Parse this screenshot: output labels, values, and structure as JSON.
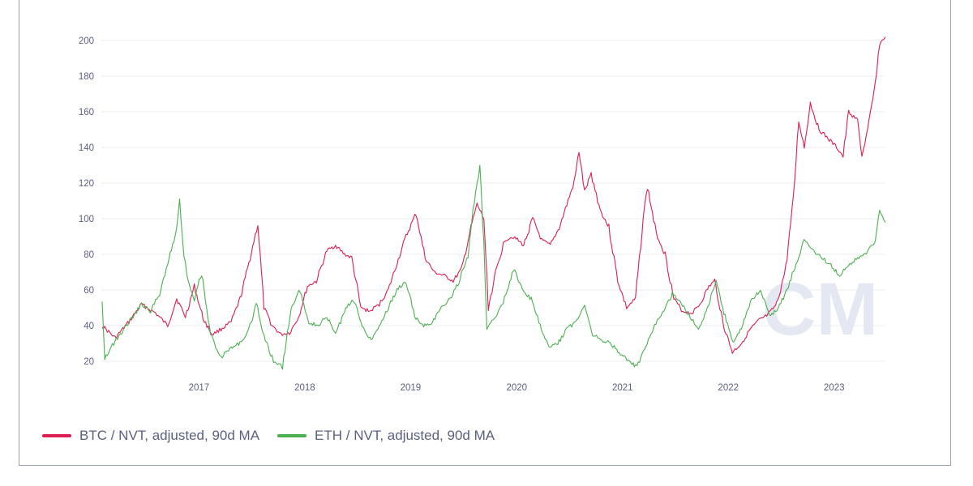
{
  "watermark": "CM",
  "chart_data": {
    "type": "line",
    "x_range": [
      "2016-08-01",
      "2023-12-25"
    ],
    "ylim": [
      15,
      210
    ],
    "y_ticks": [
      20,
      40,
      60,
      80,
      100,
      120,
      140,
      160,
      180,
      200
    ],
    "x_ticks": [
      "2017",
      "2018",
      "2019",
      "2020",
      "2021",
      "2022",
      "2023"
    ],
    "grid": "horizontal",
    "legend_position": "bottom-left",
    "series": [
      {
        "name": "BTC / NVT, adjusted, 90d MA",
        "color": "#dc1e50",
        "points": [
          [
            "2016-08-01",
            40
          ],
          [
            "2016-09-15",
            33
          ],
          [
            "2016-11-01",
            42
          ],
          [
            "2016-12-15",
            52
          ],
          [
            "2017-02-01",
            47
          ],
          [
            "2017-03-15",
            40
          ],
          [
            "2017-04-15",
            55
          ],
          [
            "2017-05-15",
            45
          ],
          [
            "2017-06-15",
            62
          ],
          [
            "2017-07-15",
            44
          ],
          [
            "2017-08-15",
            35
          ],
          [
            "2017-09-15",
            38
          ],
          [
            "2017-10-20",
            42
          ],
          [
            "2017-11-20",
            55
          ],
          [
            "2017-12-20",
            75
          ],
          [
            "2018-01-20",
            97
          ],
          [
            "2018-02-10",
            50
          ],
          [
            "2018-03-10",
            40
          ],
          [
            "2018-04-10",
            35
          ],
          [
            "2018-05-10",
            36
          ],
          [
            "2018-06-10",
            45
          ],
          [
            "2018-07-10",
            62
          ],
          [
            "2018-08-10",
            65
          ],
          [
            "2018-09-15",
            82
          ],
          [
            "2018-10-15",
            85
          ],
          [
            "2018-11-15",
            80
          ],
          [
            "2018-12-10",
            78
          ],
          [
            "2019-01-10",
            50
          ],
          [
            "2019-02-10",
            48
          ],
          [
            "2019-03-15",
            52
          ],
          [
            "2019-04-15",
            60
          ],
          [
            "2019-05-15",
            75
          ],
          [
            "2019-06-15",
            90
          ],
          [
            "2019-07-20",
            103
          ],
          [
            "2019-08-20",
            78
          ],
          [
            "2019-09-20",
            70
          ],
          [
            "2019-10-25",
            68
          ],
          [
            "2019-11-25",
            65
          ],
          [
            "2019-12-25",
            72
          ],
          [
            "2020-01-25",
            95
          ],
          [
            "2020-02-15",
            108
          ],
          [
            "2020-03-10",
            100
          ],
          [
            "2020-03-25",
            50
          ],
          [
            "2020-04-20",
            70
          ],
          [
            "2020-05-20",
            88
          ],
          [
            "2020-06-20",
            90
          ],
          [
            "2020-07-25",
            85
          ],
          [
            "2020-08-25",
            100
          ],
          [
            "2020-09-25",
            88
          ],
          [
            "2020-10-25",
            85
          ],
          [
            "2020-11-25",
            95
          ],
          [
            "2020-12-25",
            110
          ],
          [
            "2021-01-15",
            120
          ],
          [
            "2021-02-01",
            138
          ],
          [
            "2021-02-20",
            115
          ],
          [
            "2021-03-15",
            125
          ],
          [
            "2021-04-15",
            105
          ],
          [
            "2021-05-15",
            95
          ],
          [
            "2021-06-15",
            65
          ],
          [
            "2021-07-15",
            50
          ],
          [
            "2021-08-15",
            55
          ],
          [
            "2021-09-10",
            100
          ],
          [
            "2021-09-25",
            118
          ],
          [
            "2021-10-25",
            92
          ],
          [
            "2021-11-25",
            80
          ],
          [
            "2021-12-25",
            55
          ],
          [
            "2022-01-25",
            48
          ],
          [
            "2022-02-25",
            47
          ],
          [
            "2022-03-25",
            52
          ],
          [
            "2022-04-25",
            62
          ],
          [
            "2022-05-15",
            65
          ],
          [
            "2022-06-15",
            40
          ],
          [
            "2022-07-15",
            25
          ],
          [
            "2022-08-15",
            30
          ],
          [
            "2022-09-15",
            38
          ],
          [
            "2022-10-15",
            43
          ],
          [
            "2022-11-15",
            46
          ],
          [
            "2022-12-15",
            52
          ],
          [
            "2023-01-15",
            72
          ],
          [
            "2023-02-10",
            110
          ],
          [
            "2023-03-01",
            155
          ],
          [
            "2023-03-20",
            140
          ],
          [
            "2023-04-10",
            165
          ],
          [
            "2023-05-10",
            150
          ],
          [
            "2023-06-10",
            145
          ],
          [
            "2023-07-10",
            140
          ],
          [
            "2023-08-01",
            135
          ],
          [
            "2023-08-20",
            160
          ],
          [
            "2023-09-20",
            155
          ],
          [
            "2023-10-05",
            135
          ],
          [
            "2023-10-25",
            150
          ],
          [
            "2023-11-15",
            170
          ],
          [
            "2023-12-05",
            198
          ],
          [
            "2023-12-25",
            202
          ]
        ]
      },
      {
        "name": "ETH / NVT, adjusted, 90d MA",
        "color": "#4caf50",
        "points": [
          [
            "2016-08-01",
            55
          ],
          [
            "2016-08-10",
            22
          ],
          [
            "2016-09-10",
            30
          ],
          [
            "2016-10-15",
            38
          ],
          [
            "2016-11-15",
            45
          ],
          [
            "2016-12-15",
            52
          ],
          [
            "2017-01-15",
            48
          ],
          [
            "2017-02-15",
            58
          ],
          [
            "2017-03-15",
            75
          ],
          [
            "2017-04-10",
            90
          ],
          [
            "2017-04-25",
            110
          ],
          [
            "2017-05-10",
            80
          ],
          [
            "2017-05-25",
            65
          ],
          [
            "2017-06-15",
            55
          ],
          [
            "2017-07-10",
            70
          ],
          [
            "2017-08-10",
            35
          ],
          [
            "2017-09-15",
            22
          ],
          [
            "2017-10-15",
            27
          ],
          [
            "2017-11-15",
            30
          ],
          [
            "2017-12-15",
            35
          ],
          [
            "2018-01-15",
            52
          ],
          [
            "2018-02-15",
            32
          ],
          [
            "2018-03-15",
            20
          ],
          [
            "2018-04-15",
            17
          ],
          [
            "2018-05-15",
            50
          ],
          [
            "2018-06-15",
            60
          ],
          [
            "2018-07-15",
            42
          ],
          [
            "2018-08-15",
            40
          ],
          [
            "2018-09-15",
            45
          ],
          [
            "2018-10-15",
            35
          ],
          [
            "2018-11-15",
            48
          ],
          [
            "2018-12-15",
            55
          ],
          [
            "2019-01-15",
            40
          ],
          [
            "2019-02-15",
            32
          ],
          [
            "2019-03-15",
            40
          ],
          [
            "2019-04-15",
            50
          ],
          [
            "2019-05-15",
            60
          ],
          [
            "2019-06-15",
            65
          ],
          [
            "2019-07-15",
            45
          ],
          [
            "2019-08-15",
            40
          ],
          [
            "2019-09-15",
            42
          ],
          [
            "2019-10-15",
            50
          ],
          [
            "2019-11-15",
            55
          ],
          [
            "2019-12-15",
            65
          ],
          [
            "2020-01-15",
            80
          ],
          [
            "2020-02-10",
            115
          ],
          [
            "2020-02-25",
            128
          ],
          [
            "2020-03-10",
            85
          ],
          [
            "2020-03-20",
            38
          ],
          [
            "2020-04-20",
            45
          ],
          [
            "2020-05-20",
            55
          ],
          [
            "2020-06-20",
            72
          ],
          [
            "2020-07-20",
            60
          ],
          [
            "2020-08-20",
            55
          ],
          [
            "2020-09-20",
            40
          ],
          [
            "2020-10-20",
            28
          ],
          [
            "2020-11-20",
            30
          ],
          [
            "2020-12-20",
            38
          ],
          [
            "2021-01-20",
            42
          ],
          [
            "2021-02-20",
            52
          ],
          [
            "2021-03-20",
            35
          ],
          [
            "2021-04-20",
            32
          ],
          [
            "2021-05-20",
            30
          ],
          [
            "2021-06-20",
            25
          ],
          [
            "2021-07-20",
            20
          ],
          [
            "2021-08-20",
            17
          ],
          [
            "2021-09-20",
            28
          ],
          [
            "2021-10-20",
            40
          ],
          [
            "2021-11-20",
            48
          ],
          [
            "2021-12-20",
            58
          ],
          [
            "2022-01-20",
            52
          ],
          [
            "2022-02-20",
            45
          ],
          [
            "2022-03-20",
            38
          ],
          [
            "2022-04-20",
            50
          ],
          [
            "2022-05-20",
            65
          ],
          [
            "2022-06-20",
            45
          ],
          [
            "2022-07-20",
            30
          ],
          [
            "2022-08-20",
            40
          ],
          [
            "2022-09-20",
            55
          ],
          [
            "2022-10-20",
            60
          ],
          [
            "2022-11-20",
            45
          ],
          [
            "2022-12-20",
            50
          ],
          [
            "2023-01-20",
            60
          ],
          [
            "2023-02-20",
            75
          ],
          [
            "2023-03-20",
            88
          ],
          [
            "2023-04-20",
            82
          ],
          [
            "2023-05-20",
            78
          ],
          [
            "2023-06-20",
            74
          ],
          [
            "2023-07-20",
            68
          ],
          [
            "2023-08-20",
            74
          ],
          [
            "2023-09-20",
            78
          ],
          [
            "2023-10-20",
            80
          ],
          [
            "2023-11-20",
            88
          ],
          [
            "2023-12-05",
            105
          ],
          [
            "2023-12-25",
            98
          ]
        ]
      }
    ]
  }
}
